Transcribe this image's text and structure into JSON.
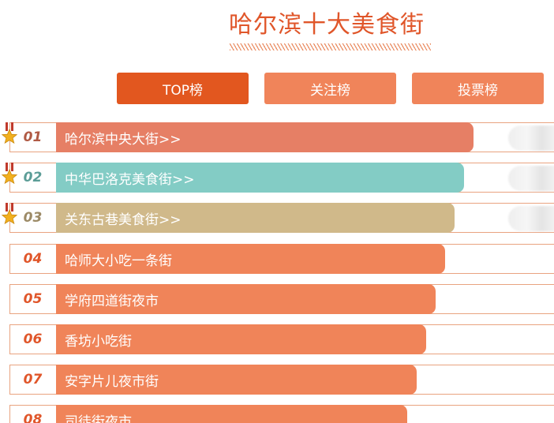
{
  "header": {
    "title": "哈尔滨十大美食街"
  },
  "tabs": [
    {
      "label": "TOP榜",
      "active": true
    },
    {
      "label": "关注榜",
      "active": false
    },
    {
      "label": "投票榜",
      "active": false
    }
  ],
  "ranking": [
    {
      "rank": "01",
      "name": "哈尔滨中央大街>>",
      "bar_color": "#e67f65",
      "rank_color": "#b05a44",
      "medal": true,
      "thumb": true
    },
    {
      "rank": "02",
      "name": "中华巴洛克美食街>>",
      "bar_color": "#83ccc5",
      "rank_color": "#5c9d97",
      "medal": true,
      "thumb": true
    },
    {
      "rank": "03",
      "name": "关东古巷美食街>>",
      "bar_color": "#d0b98a",
      "rank_color": "#9c8a66",
      "medal": true,
      "thumb": true
    },
    {
      "rank": "04",
      "name": "哈师大小吃一条街",
      "bar_color": "#f08459",
      "rank_color": "#e0562a",
      "medal": false,
      "thumb": false
    },
    {
      "rank": "05",
      "name": "学府四道街夜市",
      "bar_color": "#f08459",
      "rank_color": "#e0562a",
      "medal": false,
      "thumb": false
    },
    {
      "rank": "06",
      "name": "香坊小吃街",
      "bar_color": "#f08459",
      "rank_color": "#e0562a",
      "medal": false,
      "thumb": false
    },
    {
      "rank": "07",
      "name": "安字片儿夜市街",
      "bar_color": "#f08459",
      "rank_color": "#e0562a",
      "medal": false,
      "thumb": false
    },
    {
      "rank": "08",
      "name": "司徒街夜市",
      "bar_color": "#f08459",
      "rank_color": "#e0562a",
      "medal": false,
      "thumb": false
    }
  ]
}
